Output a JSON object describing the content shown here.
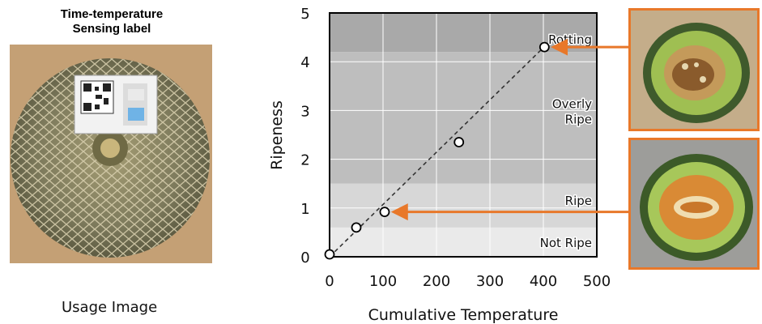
{
  "left_panel": {
    "title_line1": "Time-temperature",
    "title_line2": "Sensing label",
    "caption": "Usage Image"
  },
  "chart_data": {
    "type": "scatter",
    "xlabel": "Cumulative Temperature",
    "ylabel": "Ripeness",
    "xlim": [
      0,
      500
    ],
    "ylim": [
      0,
      5
    ],
    "xticks": [
      0,
      100,
      200,
      300,
      400,
      500
    ],
    "yticks": [
      0,
      1,
      2,
      3,
      4,
      5
    ],
    "grid": true,
    "points": [
      {
        "x": 0,
        "y": 0.05
      },
      {
        "x": 50,
        "y": 0.6
      },
      {
        "x": 103,
        "y": 0.92
      },
      {
        "x": 242,
        "y": 2.35
      },
      {
        "x": 402,
        "y": 4.3
      }
    ],
    "trend_line": {
      "x": [
        0,
        415
      ],
      "y": [
        0,
        4.45
      ],
      "style": "dashed"
    },
    "bands": [
      {
        "label": "Not Ripe",
        "from": 0,
        "to": 0.6,
        "color": "#eaeaea"
      },
      {
        "label": "Ripe",
        "from": 0.6,
        "to": 1.5,
        "color": "#d7d7d7"
      },
      {
        "label": "Overly Ripe",
        "from": 1.5,
        "to": 4.2,
        "color": "#bebebe"
      },
      {
        "label": "Rotting",
        "from": 4.2,
        "to": 5,
        "color": "#a9a9a9"
      }
    ],
    "callouts": [
      {
        "from_point": 4,
        "to": "rotting-photo"
      },
      {
        "from_point": 2,
        "to": "ripe-photo"
      }
    ]
  },
  "colors": {
    "accent_orange": "#e8782a",
    "melon_rind": "#7d7a5c",
    "melon_net": "#d8cfae",
    "cardboard": "#c9a77c",
    "melon_flesh_green": "#9fbf52",
    "melon_flesh_orange": "#d98a35"
  },
  "icons": {
    "melon_photo": "cantaloupe-with-label-image",
    "qr_label": "qr-code-label",
    "rotting_photo": "rotting-melon-image",
    "ripe_photo": "ripe-melon-image"
  }
}
